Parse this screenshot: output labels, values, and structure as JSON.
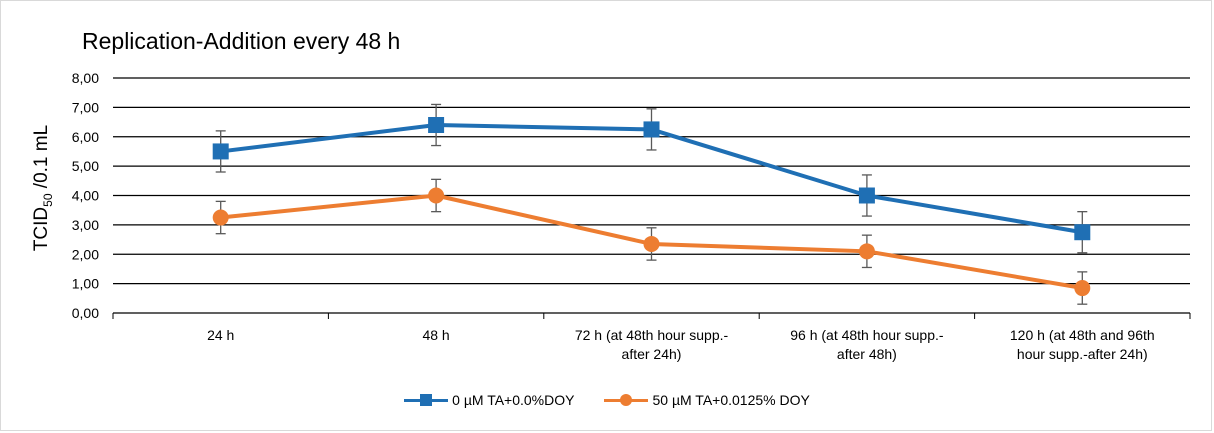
{
  "chart_data": {
    "type": "line",
    "title": "Replication-Addition every 48 h",
    "ylabel": "TCID",
    "ylabel_sub": "50",
    "ylabel_rest": " /0.1 mL",
    "xlabel": "",
    "ylim": [
      0,
      8
    ],
    "ytick_values": [
      0,
      1,
      2,
      3,
      4,
      5,
      6,
      7,
      8
    ],
    "ytick_labels": [
      "0,00",
      "1,00",
      "2,00",
      "3,00",
      "4,00",
      "5,00",
      "6,00",
      "7,00",
      "8,00"
    ],
    "categories": [
      [
        "24 h"
      ],
      [
        "48 h"
      ],
      [
        "72 h (at 48th hour supp.-",
        "after 24h)"
      ],
      [
        "96 h (at 48th hour supp.-",
        "after 48h)"
      ],
      [
        "120 h (at 48th and 96th",
        "hour supp.-after 24h)"
      ]
    ],
    "series": [
      {
        "name": "0 µM TA+0.0%DOY",
        "color": "#1f6fb4",
        "marker": "square",
        "values": [
          5.5,
          6.4,
          6.25,
          4.0,
          2.75
        ],
        "errors": [
          0.7,
          0.7,
          0.7,
          0.7,
          0.7
        ]
      },
      {
        "name": "50 µM TA+0.0125% DOY",
        "color": "#ed7d31",
        "marker": "circle",
        "values": [
          3.25,
          4.0,
          2.35,
          2.1,
          0.85
        ],
        "errors": [
          0.55,
          0.55,
          0.55,
          0.55,
          0.55
        ]
      }
    ],
    "grid": true,
    "legend_position": "bottom"
  }
}
